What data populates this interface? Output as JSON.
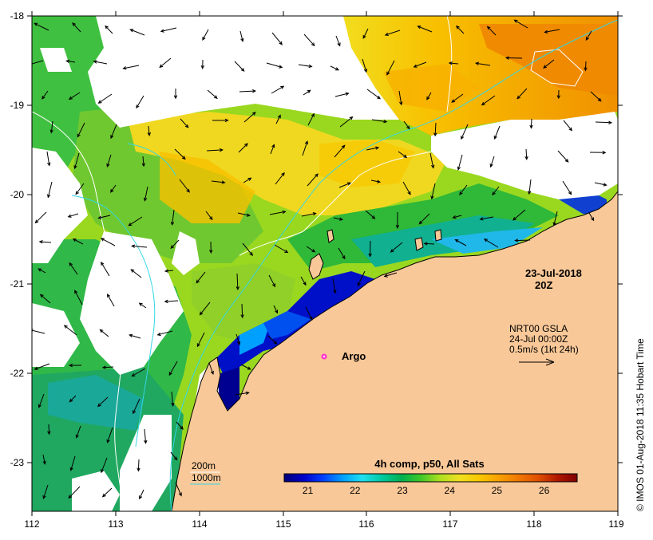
{
  "map": {
    "date": "23-Jul-2018",
    "time": "20Z",
    "product": "4h comp, p50, All Sats",
    "gsla": {
      "line1": "NRT00 GSLA",
      "line2": "24-Jul 00:00Z",
      "line3": "0.5m/s (1kt 24h)"
    },
    "argo_label": "Argo",
    "credit": "© IMOS 01-Aug-2018 11:35 Hobart Time",
    "contour_legend": {
      "shallow": "200m",
      "deep": "1000m"
    },
    "colors": {
      "land": "#f9c898",
      "cloud": "#ffffff",
      "contour_200": "#ffffff",
      "contour_1000": "#33d6e6",
      "argo": "#ff33cc"
    }
  },
  "axes": {
    "x_ticks": [
      "112",
      "113",
      "114",
      "115",
      "116",
      "117",
      "118",
      "119"
    ],
    "y_ticks": [
      "-18",
      "-19",
      "-20",
      "-21",
      "-22",
      "-23"
    ]
  },
  "colorbar": {
    "range": [
      20.5,
      26.7
    ],
    "labels": [
      "21",
      "22",
      "23",
      "24",
      "25",
      "26"
    ],
    "stops": [
      "#00007a",
      "#0000c8",
      "#0040ff",
      "#00a0ff",
      "#20e0f0",
      "#00c8a0",
      "#00b050",
      "#40c828",
      "#b0e020",
      "#f0e020",
      "#f8c800",
      "#f8a000",
      "#f07800",
      "#e05000",
      "#b01800",
      "#800000"
    ]
  }
}
